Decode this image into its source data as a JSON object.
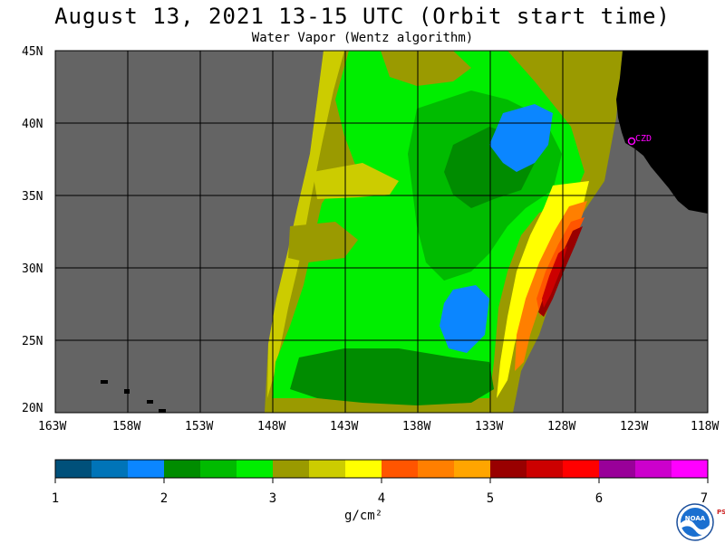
{
  "title": "August 13, 2021  13-15 UTC  (Orbit start time)",
  "subtitle": "Water Vapor (Wentz algorithm)",
  "map": {
    "lat_labels": [
      "45N",
      "40N",
      "35N",
      "30N",
      "25N",
      "20N"
    ],
    "lon_labels": [
      "163W",
      "158W",
      "153W",
      "148W",
      "143W",
      "138W",
      "133W",
      "128W",
      "123W",
      "118W"
    ],
    "station_label": "CZD",
    "colors": {
      "ocean": "#646464",
      "land": "#000000",
      "grid": "#000000",
      "station": "#ff00ff"
    }
  },
  "legend": {
    "colors": [
      "#00507a",
      "#0074b8",
      "#0b86ff",
      "#008c00",
      "#00bb00",
      "#00ee00",
      "#9a9a00",
      "#cccc00",
      "#ffff00",
      "#ff5500",
      "#ff7f00",
      "#ffa500",
      "#990000",
      "#cc0000",
      "#ff0000",
      "#990099",
      "#cc00cc",
      "#ff00ff"
    ],
    "tick_labels": [
      "1",
      "2",
      "3",
      "4",
      "5",
      "6",
      "7"
    ],
    "unit": "g/cm²"
  },
  "logo": {
    "text": "NOAA",
    "side_text": "PSL"
  }
}
